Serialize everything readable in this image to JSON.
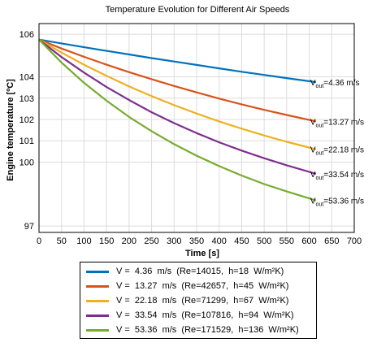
{
  "chart_data": {
    "type": "line",
    "title": "Temperature Evolution for Different Air Speeds",
    "xlabel": "Time [s]",
    "ylabel": "Engine temperature [ºC]",
    "xlim": [
      0,
      700
    ],
    "ylim": [
      96.7,
      106.5
    ],
    "xticks": [
      "0",
      "50",
      "100",
      "150",
      "200",
      "250",
      "300",
      "350",
      "400",
      "450",
      "500",
      "550",
      "600",
      "650",
      "700"
    ],
    "yticks": [
      {
        "label": "106",
        "value": 106
      },
      {
        "label": "104",
        "value": 104
      },
      {
        "label": "103",
        "value": 103
      },
      {
        "label": "102",
        "value": 102
      },
      {
        "label": "101",
        "value": 101
      },
      {
        "label": "100",
        "value": 100
      },
      {
        "label": "97",
        "value": 97
      }
    ],
    "grid": true,
    "legend_position": "below",
    "series": [
      {
        "name": "V =  4.36  m/s  (Re=14015,  h=18  W/m²K)",
        "sup": "2",
        "color": "#0072BD",
        "end_label_prefix": "V",
        "end_label_sub": "out",
        "end_label_value": "=4.36 m/s",
        "x": [
          0,
          50,
          100,
          150,
          200,
          250,
          300,
          350,
          400,
          450,
          500,
          550,
          615
        ],
        "y": [
          105.75,
          105.57,
          105.39,
          105.22,
          105.05,
          104.88,
          104.72,
          104.56,
          104.4,
          104.24,
          104.09,
          103.94,
          103.75
        ]
      },
      {
        "name": "V =  13.27  m/s  (Re=42657,  h=45  W/m²K)",
        "sup": "2",
        "color": "#D95319",
        "end_label_prefix": "V",
        "end_label_sub": "out",
        "end_label_value": "=13.27 m/s",
        "x": [
          0,
          50,
          100,
          150,
          200,
          250,
          300,
          350,
          400,
          450,
          500,
          550,
          615
        ],
        "y": [
          105.75,
          105.33,
          104.94,
          104.57,
          104.22,
          103.89,
          103.57,
          103.27,
          102.98,
          102.71,
          102.45,
          102.21,
          101.91
        ]
      },
      {
        "name": "V =  22.18  m/s  (Re=71299,  h=67  W/m²K)",
        "sup": "2",
        "color": "#EDB120",
        "end_label_prefix": "V",
        "end_label_sub": "out",
        "end_label_value": "=22.18 m/s",
        "x": [
          0,
          50,
          100,
          150,
          200,
          250,
          300,
          350,
          400,
          450,
          500,
          550,
          615
        ],
        "y": [
          105.75,
          105.14,
          104.57,
          104.05,
          103.55,
          103.1,
          102.67,
          102.28,
          101.91,
          101.57,
          101.25,
          100.95,
          100.6
        ]
      },
      {
        "name": "V =  33.54  m/s  (Re=107816,  h=94  W/m²K)",
        "sup": "2",
        "color": "#7E2F8E",
        "end_label_prefix": "V",
        "end_label_sub": "out",
        "end_label_value": "=33.54 m/s",
        "x": [
          0,
          50,
          100,
          150,
          200,
          250,
          300,
          350,
          400,
          450,
          500,
          550,
          615
        ],
        "y": [
          105.75,
          104.93,
          104.2,
          103.52,
          102.91,
          102.34,
          101.83,
          101.36,
          100.93,
          100.54,
          100.18,
          99.85,
          99.45
        ]
      },
      {
        "name": "V =  53.36  m/s  (Re=171529,  h=136  W/m²K)",
        "sup": "2",
        "color": "#77AC30",
        "end_label_prefix": "V",
        "end_label_sub": "out",
        "end_label_value": "=53.36 m/s",
        "x": [
          0,
          50,
          100,
          150,
          200,
          250,
          300,
          350,
          400,
          450,
          500,
          550,
          615
        ],
        "y": [
          105.75,
          104.67,
          103.72,
          102.88,
          102.12,
          101.45,
          100.84,
          100.3,
          99.81,
          99.37,
          98.97,
          98.62,
          98.2
        ]
      }
    ]
  }
}
